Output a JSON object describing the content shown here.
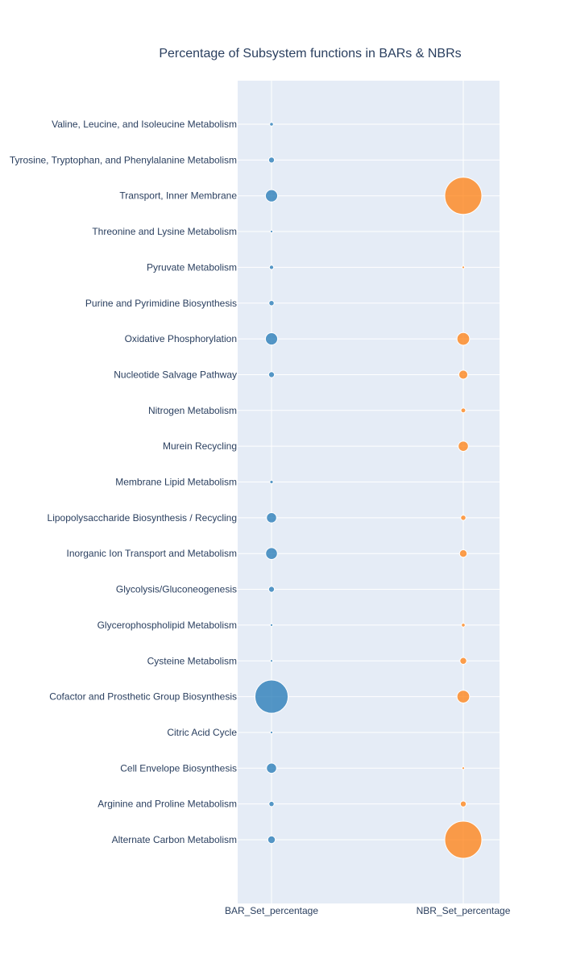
{
  "chart_data": {
    "type": "scatter",
    "title": "Percentage of Subsystem functions in BARs & NBRs",
    "x_categories": [
      "BAR_Set_percentage",
      "NBR_Set_percentage"
    ],
    "y_categories": [
      "Valine, Leucine, and Isoleucine Metabolism",
      "Tyrosine, Tryptophan, and Phenylalanine Metabolism",
      "Transport, Inner Membrane",
      "Threonine and Lysine Metabolism",
      "Pyruvate Metabolism",
      "Purine and Pyrimidine Biosynthesis",
      "Oxidative Phosphorylation",
      "Nucleotide Salvage Pathway",
      "Nitrogen Metabolism",
      "Murein Recycling",
      "Membrane Lipid Metabolism",
      "Lipopolysaccharide Biosynthesis / Recycling",
      "Inorganic Ion Transport and Metabolism",
      "Glycolysis/Gluconeogenesis",
      "Glycerophospholipid Metabolism",
      "Cysteine Metabolism",
      "Cofactor and Prosthetic Group Biosynthesis",
      "Citric Acid Cycle",
      "Cell Envelope Biosynthesis",
      "Arginine and Proline Metabolism",
      "Alternate Carbon Metabolism"
    ],
    "series": [
      {
        "x": "BAR_Set_percentage",
        "color": "#1f77b4",
        "sizes": [
          0.6,
          1.5,
          6.5,
          0.3,
          0.8,
          1.2,
          6.5,
          1.5,
          0,
          0,
          0.5,
          4.5,
          6,
          1.5,
          0.3,
          0.2,
          48,
          0.3,
          4.5,
          1.2,
          2.5
        ]
      },
      {
        "x": "NBR_Set_percentage",
        "color": "#ff7f0e",
        "sizes": [
          0,
          0,
          60,
          0,
          0.1,
          0,
          7,
          3.5,
          1,
          4.5,
          0,
          1.2,
          2.5,
          0,
          0.6,
          2,
          7,
          0,
          0.3,
          1.5,
          60
        ]
      }
    ],
    "size_note": "relative marker size (area), no legend shown",
    "grid": true,
    "legend": "none",
    "plot_bg": "#e5ecf6"
  }
}
